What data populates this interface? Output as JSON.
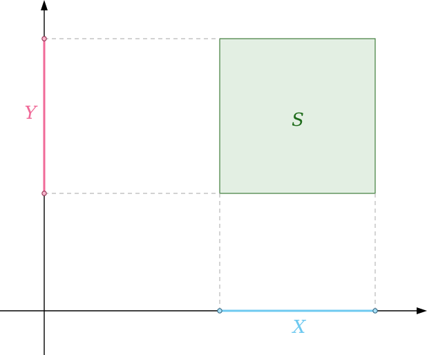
{
  "labels": {
    "x_segment": "X",
    "y_segment": "Y",
    "region": "S"
  },
  "colors": {
    "axis": "#000000",
    "x_segment": "#6ec9f0",
    "y_segment": "#f06a98",
    "region_fill": "#e3efe3",
    "region_stroke": "#3f7d3a",
    "region_label": "#1e6b1a",
    "guide": "#b8b8b8",
    "endpoint_x_fill": "#a9e1f7",
    "endpoint_y_fill": "#f7b7cc"
  },
  "icons": {
    "x_axis_arrow": "arrowhead-right",
    "y_axis_arrow": "arrowhead-up",
    "endpoint": "small-circle"
  }
}
